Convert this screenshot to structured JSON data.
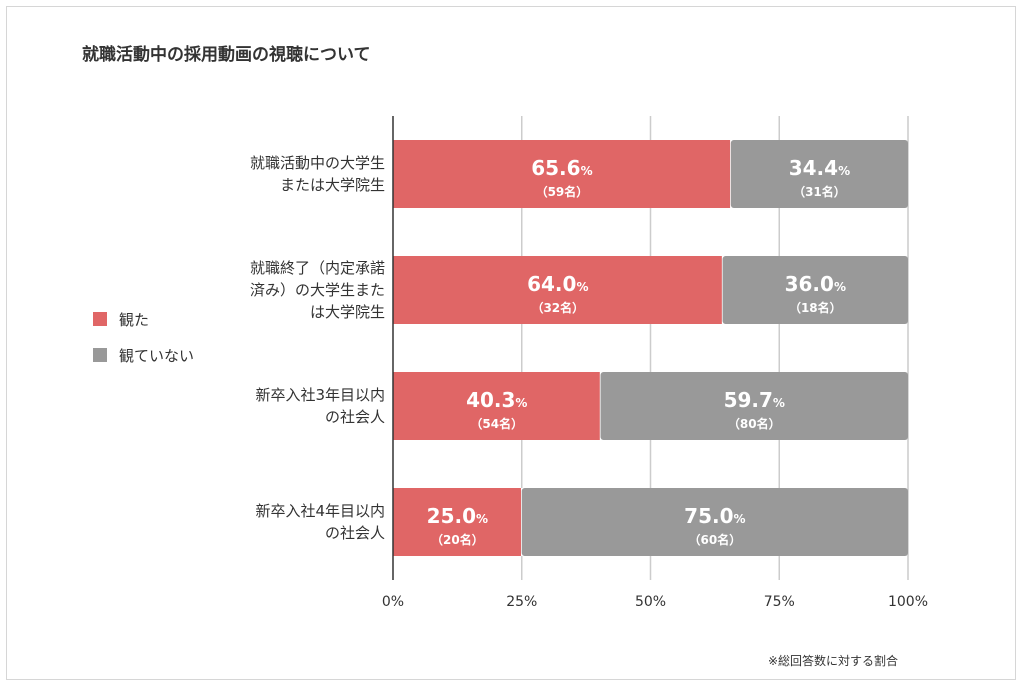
{
  "chart_data": {
    "type": "bar",
    "orientation": "horizontal",
    "stacked": true,
    "title": "就職活動中の採用動画の視聴について",
    "categories": [
      [
        "就職活動中の大学生",
        "または大学院生"
      ],
      [
        "就職終了（内定承諾",
        "済み）の大学生また",
        "は大学院生"
      ],
      [
        "新卒入社3年目以内",
        "の社会人"
      ],
      [
        "新卒入社4年目以内",
        "の社会人"
      ]
    ],
    "series": [
      {
        "name": "観た",
        "color": "#e06666",
        "values": [
          65.6,
          64.0,
          40.3,
          25.0
        ],
        "value_labels": [
          "65.6",
          "64.0",
          "40.3",
          "25.0"
        ],
        "counts": [
          "（59名）",
          "（32名）",
          "（54名）",
          "（20名）"
        ]
      },
      {
        "name": "観ていない",
        "color": "#999999",
        "values": [
          34.4,
          36.0,
          59.7,
          75.0
        ],
        "value_labels": [
          "34.4",
          "36.0",
          "59.7",
          "75.0"
        ],
        "counts": [
          "（31名）",
          "（18名）",
          "（80名）",
          "（60名）"
        ]
      }
    ],
    "unit": "%",
    "xlim": [
      0,
      100
    ],
    "xticks": [
      "0%",
      "25%",
      "50%",
      "75%",
      "100%"
    ],
    "grid": true,
    "legend": "left",
    "footnote": "※総回答数に対する割合"
  }
}
